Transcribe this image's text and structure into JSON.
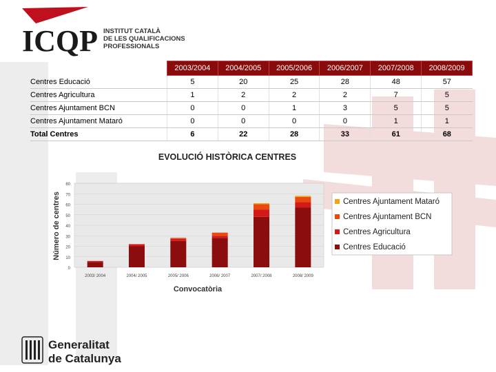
{
  "organization": {
    "logo_text": "ICQP",
    "subtitle_lines": [
      "INSTITUT CATALÀ",
      "DE LES QUALIFICACIONS",
      "PROFESSIONALS"
    ]
  },
  "footer_logo": {
    "lines": [
      "Generalitat",
      "de Catalunya"
    ]
  },
  "table": {
    "columns": [
      "2003/2004",
      "2004/2005",
      "2005/2006",
      "2006/2007",
      "2007/2008",
      "2008/2009"
    ],
    "rows": [
      {
        "label": "Centres Educació",
        "values": [
          "5",
          "20",
          "25",
          "28",
          "48",
          "57"
        ]
      },
      {
        "label": "Centres Agricultura",
        "values": [
          "1",
          "2",
          "2",
          "2",
          "7",
          "5"
        ]
      },
      {
        "label": "Centres Ajuntament BCN",
        "values": [
          "0",
          "0",
          "1",
          "3",
          "5",
          "5"
        ]
      },
      {
        "label": "Centres Ajuntament Mataró",
        "values": [
          "0",
          "0",
          "0",
          "0",
          "1",
          "1"
        ]
      },
      {
        "label": "Total Centres",
        "values": [
          "6",
          "22",
          "28",
          "33",
          "61",
          "68"
        ]
      }
    ]
  },
  "chart_data": {
    "type": "bar",
    "stacked": true,
    "title": "EVOLUCIÓ HISTÒRICA CENTRES",
    "xlabel": "Convocatòria",
    "ylabel": "Número de centres",
    "categories": [
      "2003/ 2004",
      "2004/ 2005",
      "2005/ 2006",
      "2006/ 2007",
      "2007/ 2008",
      "2008/ 2009"
    ],
    "ylim": [
      0,
      80
    ],
    "yticks": [
      0,
      10,
      20,
      30,
      40,
      50,
      60,
      70,
      80
    ],
    "series": [
      {
        "name": "Centres Educació",
        "values": [
          5,
          20,
          25,
          28,
          48,
          57
        ],
        "color": "#8b0d0d"
      },
      {
        "name": "Centres Agricultura",
        "values": [
          1,
          2,
          2,
          2,
          7,
          5
        ],
        "color": "#d51818"
      },
      {
        "name": "Centres Ajuntament BCN",
        "values": [
          0,
          0,
          1,
          3,
          5,
          5
        ],
        "color": "#e84a10"
      },
      {
        "name": "Centres Ajuntament Mataró",
        "values": [
          0,
          0,
          0,
          0,
          1,
          1
        ],
        "color": "#f2a31b"
      }
    ],
    "legend_order": [
      "Centres Ajuntament Mataró",
      "Centres Ajuntament BCN",
      "Centres Agricultura",
      "Centres Educació"
    ],
    "legend_position": "right",
    "grid": true
  }
}
